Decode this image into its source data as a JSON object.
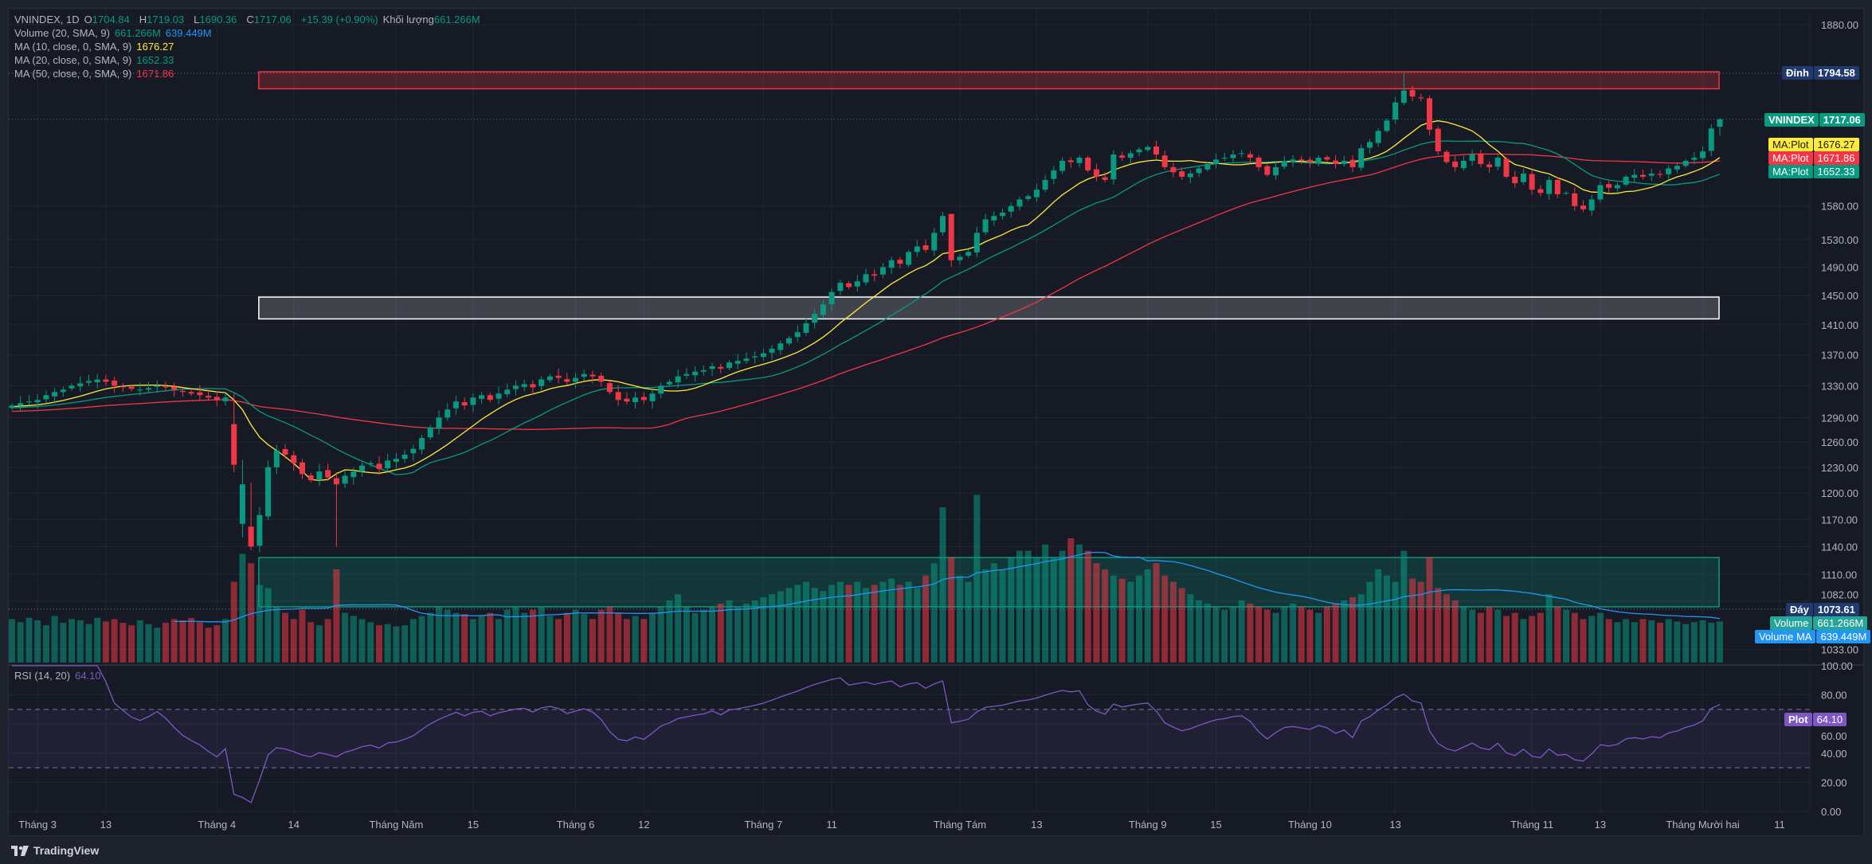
{
  "header": {
    "symbol": "VNINDEX, 1D",
    "open_label": "O",
    "open": "1704.84",
    "high_label": "H",
    "high": "1719.03",
    "low_label": "L",
    "low": "1690.36",
    "close_label": "C",
    "close": "1717.06",
    "change": "+15.39 (+0.90%)",
    "volume_label": "Khối lượng",
    "volume": "661.266M"
  },
  "indicators": [
    {
      "label": "Volume (20, SMA, 9)",
      "values": [
        "661.266M",
        "639.449M"
      ]
    },
    {
      "label": "MA (10, close, 0, SMA, 9)",
      "values": [
        "1676.27"
      ]
    },
    {
      "label": "MA (20, close, 0, SMA, 9)",
      "values": [
        "1652.33"
      ]
    },
    {
      "label": "MA (50, close, 0, SMA, 9)",
      "values": [
        "1671.86"
      ]
    }
  ],
  "rsi": {
    "label": "RSI (14, 20)",
    "value": "64.10",
    "tag_label": "Plot"
  },
  "price_tags": {
    "top": {
      "label": "Đỉnh",
      "value": "1794.58"
    },
    "last": {
      "label": "VNINDEX",
      "value": "1717.06"
    },
    "ma10": {
      "label": "MA:Plot",
      "value": "1676.27"
    },
    "ma50": {
      "label": "MA:Plot",
      "value": "1671.86"
    },
    "ma20": {
      "label": "MA:Plot",
      "value": "1652.33"
    },
    "bottom": {
      "label": "Đáy",
      "value": "1073.61"
    },
    "volume": {
      "label": "Volume",
      "value": "661.266M"
    },
    "volume_ma": {
      "label": "Volume MA",
      "value": "639.449M"
    }
  },
  "colors": {
    "up": "#089981",
    "down": "#f23645",
    "ma10": "#ffeb3b",
    "ma20": "#089981",
    "ma50": "#f23645",
    "volume_ma": "#2196f3",
    "rsi": "#7e57c2"
  },
  "footer": {
    "brand": "TradingView"
  },
  "chart_data": {
    "type": "candlestick",
    "symbol": "VNINDEX",
    "interval": "1D",
    "price_scale": "log",
    "price_ticks": [
      1880,
      1580,
      1530,
      1490,
      1450,
      1410,
      1370,
      1330,
      1290,
      1260,
      1230,
      1200,
      1170,
      1140,
      1110,
      1082,
      1033
    ],
    "price_tick_labels": [
      "1880.00",
      "1580.00",
      "1530.00",
      "1490.00",
      "1450.00",
      "1410.00",
      "1370.00",
      "1330.00",
      "1290.00",
      "1260.00",
      "1230.00",
      "1200.00",
      "1170.00",
      "1140.00",
      "1110.00",
      "1082.00",
      "1033.00"
    ],
    "rsi_ticks": [
      100,
      80,
      60,
      40,
      20,
      0
    ],
    "rsi_tick_labels": [
      "100.00",
      "80.00",
      "60.00",
      "40.00",
      "20.00",
      "0.00"
    ],
    "rsi_bands": [
      70,
      30
    ],
    "time_labels": [
      {
        "label": "Tháng 3",
        "index": 3
      },
      {
        "label": "13",
        "index": 11
      },
      {
        "label": "Tháng 4",
        "index": 24
      },
      {
        "label": "14",
        "index": 33
      },
      {
        "label": "Tháng Năm",
        "index": 45
      },
      {
        "label": "15",
        "index": 54
      },
      {
        "label": "Tháng 6",
        "index": 66
      },
      {
        "label": "12",
        "index": 74
      },
      {
        "label": "Tháng 7",
        "index": 88
      },
      {
        "label": "11",
        "index": 96
      },
      {
        "label": "Tháng Tám",
        "index": 111
      },
      {
        "label": "13",
        "index": 120
      },
      {
        "label": "Tháng 9",
        "index": 133
      },
      {
        "label": "15",
        "index": 141
      },
      {
        "label": "Tháng 10",
        "index": 152
      },
      {
        "label": "13",
        "index": 162
      },
      {
        "label": "Tháng 11",
        "index": 178
      },
      {
        "label": "13",
        "index": 186
      },
      {
        "label": "Tháng Mười hai",
        "index": 198
      },
      {
        "label": "11",
        "index": 207
      }
    ],
    "zones": [
      {
        "name": "resistance-zone",
        "from_index": 29,
        "to_index": 200,
        "price_low": 1768,
        "price_high": 1797,
        "color": "#f23645"
      },
      {
        "name": "support-zone",
        "from_index": 29,
        "to_index": 200,
        "price_low": 1418,
        "price_high": 1448,
        "color": "#ffffff"
      },
      {
        "name": "volume-zone",
        "from_index": 29,
        "to_index": 200,
        "price_low": 1076,
        "price_high": 1128,
        "color": "#089981"
      }
    ],
    "closes": [
      1305,
      1308,
      1310,
      1312,
      1318,
      1322,
      1325,
      1330,
      1333,
      1336,
      1338,
      1335,
      1330,
      1328,
      1326,
      1325,
      1327,
      1330,
      1328,
      1325,
      1322,
      1320,
      1318,
      1315,
      1312,
      1315,
      1233,
      1210,
      1140,
      1175,
      1230,
      1250,
      1245,
      1235,
      1222,
      1215,
      1225,
      1218,
      1210,
      1220,
      1225,
      1232,
      1235,
      1228,
      1238,
      1240,
      1245,
      1252,
      1265,
      1278,
      1290,
      1300,
      1310,
      1305,
      1315,
      1318,
      1312,
      1320,
      1325,
      1330,
      1332,
      1328,
      1338,
      1342,
      1340,
      1335,
      1340,
      1345,
      1342,
      1335,
      1322,
      1312,
      1310,
      1315,
      1312,
      1320,
      1330,
      1335,
      1342,
      1345,
      1348,
      1350,
      1355,
      1352,
      1360,
      1362,
      1365,
      1368,
      1372,
      1378,
      1385,
      1392,
      1400,
      1412,
      1425,
      1438,
      1455,
      1468,
      1462,
      1470,
      1480,
      1478,
      1490,
      1500,
      1495,
      1512,
      1520,
      1515,
      1540,
      1565,
      1500,
      1505,
      1512,
      1540,
      1560,
      1565,
      1570,
      1580,
      1590,
      1595,
      1605,
      1620,
      1635,
      1650,
      1648,
      1655,
      1635,
      1625,
      1620,
      1660,
      1655,
      1662,
      1668,
      1672,
      1660,
      1640,
      1632,
      1625,
      1630,
      1638,
      1645,
      1652,
      1655,
      1660,
      1662,
      1655,
      1640,
      1628,
      1640,
      1650,
      1652,
      1650,
      1648,
      1655,
      1652,
      1645,
      1650,
      1640,
      1670,
      1680,
      1698,
      1715,
      1745,
      1765,
      1755,
      1752,
      1700,
      1665,
      1648,
      1640,
      1650,
      1660,
      1645,
      1640,
      1655,
      1625,
      1615,
      1630,
      1605,
      1600,
      1620,
      1598,
      1600,
      1580,
      1575,
      1590,
      1612,
      1608,
      1612,
      1625,
      1628,
      1625,
      1630,
      1628,
      1638,
      1642,
      1650,
      1655,
      1665,
      1702,
      1717.06
    ],
    "last_candle": {
      "open": 1704.84,
      "high": 1719.03,
      "low": 1690.36,
      "close": 1717.06
    },
    "volumes_millions": [
      700,
      650,
      720,
      680,
      600,
      750,
      640,
      700,
      680,
      620,
      720,
      660,
      700,
      640,
      600,
      680,
      620,
      560,
      640,
      700,
      680,
      720,
      650,
      560,
      600,
      700,
      1300,
      1750,
      1600,
      1250,
      1200,
      900,
      800,
      700,
      850,
      650,
      600,
      700,
      1500,
      800,
      750,
      700,
      650,
      600,
      620,
      580,
      600,
      700,
      750,
      800,
      900,
      850,
      800,
      780,
      700,
      750,
      800,
      700,
      850,
      900,
      800,
      850,
      900,
      750,
      700,
      800,
      850,
      780,
      700,
      850,
      900,
      800,
      700,
      750,
      700,
      800,
      900,
      1000,
      1100,
      900,
      800,
      850,
      900,
      950,
      1000,
      900,
      950,
      1000,
      1050,
      1100,
      1150,
      1200,
      1250,
      1300,
      1200,
      1150,
      1250,
      1300,
      1250,
      1300,
      1200,
      1250,
      1300,
      1350,
      1250,
      1300,
      1200,
      1400,
      1600,
      2500,
      1700,
      1400,
      1300,
      2700,
      1500,
      1600,
      1500,
      1700,
      1800,
      1800,
      1700,
      1900,
      1700,
      1800,
      2000,
      1900,
      1800,
      1600,
      1500,
      1400,
      1350,
      1300,
      1400,
      1500,
      1600,
      1400,
      1300,
      1200,
      1100,
      1000,
      950,
      900,
      850,
      900,
      1000,
      950,
      900,
      850,
      800,
      900,
      950,
      900,
      850,
      800,
      900,
      950,
      1000,
      1050,
      1100,
      1300,
      1500,
      1400,
      1300,
      1800,
      1350,
      1300,
      1700,
      1200,
      1100,
      1000,
      900,
      850,
      800,
      900,
      850,
      750,
      800,
      700,
      750,
      800,
      1100,
      900,
      850,
      800,
      700,
      750,
      800,
      700,
      650,
      700,
      650,
      700,
      680,
      640,
      700,
      660,
      620,
      650,
      680,
      640,
      661.266
    ],
    "ma_periods": [
      10,
      20,
      50
    ],
    "volume_ma_period": 20,
    "rsi_period": 14
  }
}
